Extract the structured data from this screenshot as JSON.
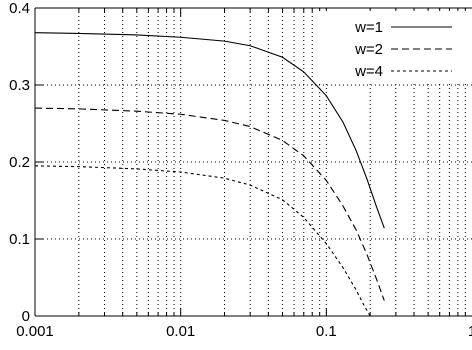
{
  "chart_data": {
    "type": "line",
    "title": "",
    "xlabel": "",
    "ylabel": "",
    "xscale": "log",
    "xlim": [
      0.001,
      1
    ],
    "ylim": [
      0,
      0.4
    ],
    "grid": true,
    "legend_position": "top-right",
    "x_tick_labels": [
      "0.001",
      "0.01",
      "0.1",
      "1"
    ],
    "y_tick_labels": [
      "0",
      "0.1",
      "0.2",
      "0.3",
      "0.4"
    ],
    "series": [
      {
        "name": "w=1",
        "style": "solid",
        "x": [
          0.001,
          0.002,
          0.005,
          0.01,
          0.02,
          0.03,
          0.05,
          0.07,
          0.1,
          0.13,
          0.16,
          0.19,
          0.22,
          0.25
        ],
        "y": [
          0.368,
          0.367,
          0.365,
          0.362,
          0.357,
          0.351,
          0.336,
          0.317,
          0.286,
          0.252,
          0.215,
          0.178,
          0.143,
          0.114
        ]
      },
      {
        "name": "w=2",
        "style": "dashed",
        "x": [
          0.001,
          0.002,
          0.005,
          0.01,
          0.02,
          0.03,
          0.05,
          0.07,
          0.1,
          0.13,
          0.16,
          0.19,
          0.22,
          0.25
        ],
        "y": [
          0.27,
          0.269,
          0.266,
          0.262,
          0.254,
          0.246,
          0.228,
          0.208,
          0.176,
          0.143,
          0.112,
          0.08,
          0.049,
          0.02
        ]
      },
      {
        "name": "w=4",
        "style": "dotted",
        "x": [
          0.001,
          0.002,
          0.005,
          0.01,
          0.02,
          0.03,
          0.05,
          0.07,
          0.1,
          0.13,
          0.16,
          0.18,
          0.2
        ],
        "y": [
          0.195,
          0.194,
          0.191,
          0.187,
          0.179,
          0.17,
          0.151,
          0.128,
          0.094,
          0.063,
          0.034,
          0.015,
          0.0
        ]
      }
    ]
  }
}
